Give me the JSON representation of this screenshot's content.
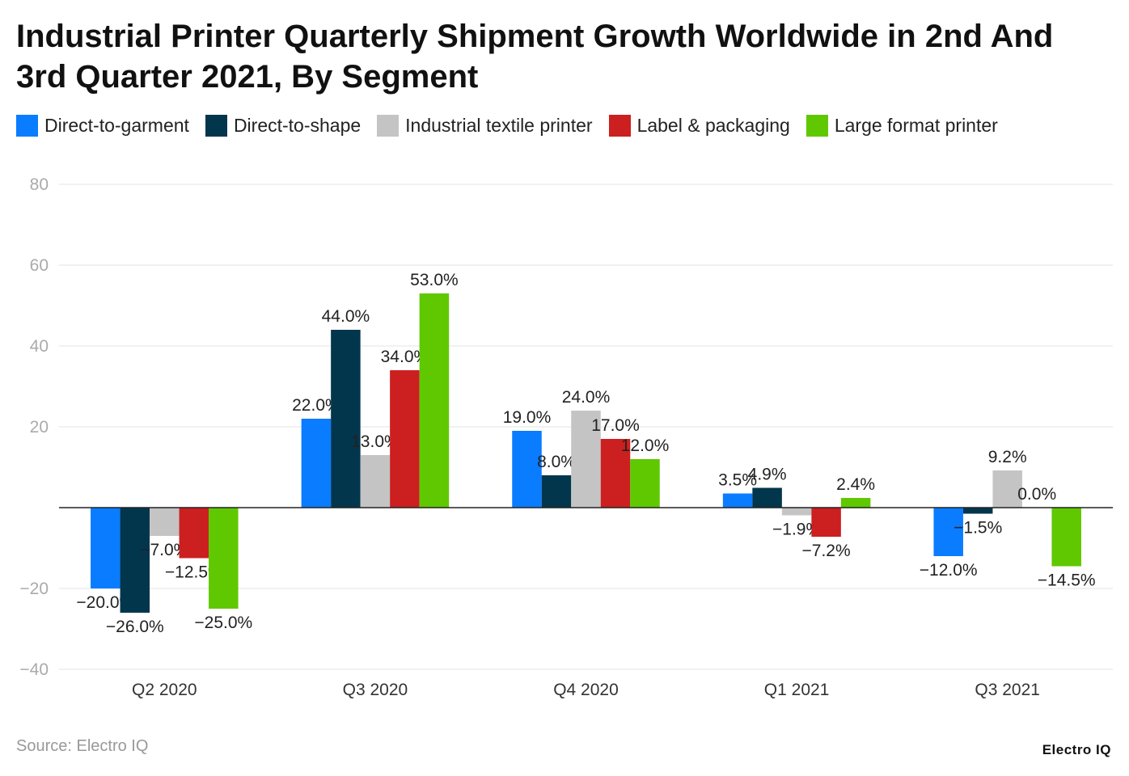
{
  "chart_data": {
    "type": "bar",
    "title": "Industrial Printer Quarterly Shipment Growth Worldwide in 2nd And 3rd Quarter 2021, By Segment",
    "categories": [
      "Q2 2020",
      "Q3 2020",
      "Q4 2020",
      "Q1 2021",
      "Q3 2021"
    ],
    "series": [
      {
        "name": "Direct-to-garment",
        "color": "#0a7cff",
        "values": [
          -20.0,
          22.0,
          19.0,
          3.5,
          -12.0
        ]
      },
      {
        "name": "Direct-to-shape",
        "color": "#02364d",
        "values": [
          -26.0,
          44.0,
          8.0,
          4.9,
          -1.5
        ]
      },
      {
        "name": "Industrial textile printer",
        "color": "#c4c4c4",
        "values": [
          -7.0,
          13.0,
          24.0,
          -1.9,
          9.2
        ]
      },
      {
        "name": "Label & packaging",
        "color": "#cc1f1f",
        "values": [
          -12.5,
          34.0,
          17.0,
          -7.2,
          0.0
        ]
      },
      {
        "name": "Large format printer",
        "color": "#5fc800",
        "values": [
          -25.0,
          53.0,
          12.0,
          2.4,
          -14.5
        ]
      }
    ],
    "ylim": [
      -40,
      80
    ],
    "yticks": [
      -40,
      -20,
      0,
      20,
      40,
      60,
      80
    ],
    "grid": true,
    "legend_placement": "top-left",
    "label_suffix": "%"
  },
  "source": "Source: Electro IQ",
  "logo": "Electro IQ"
}
